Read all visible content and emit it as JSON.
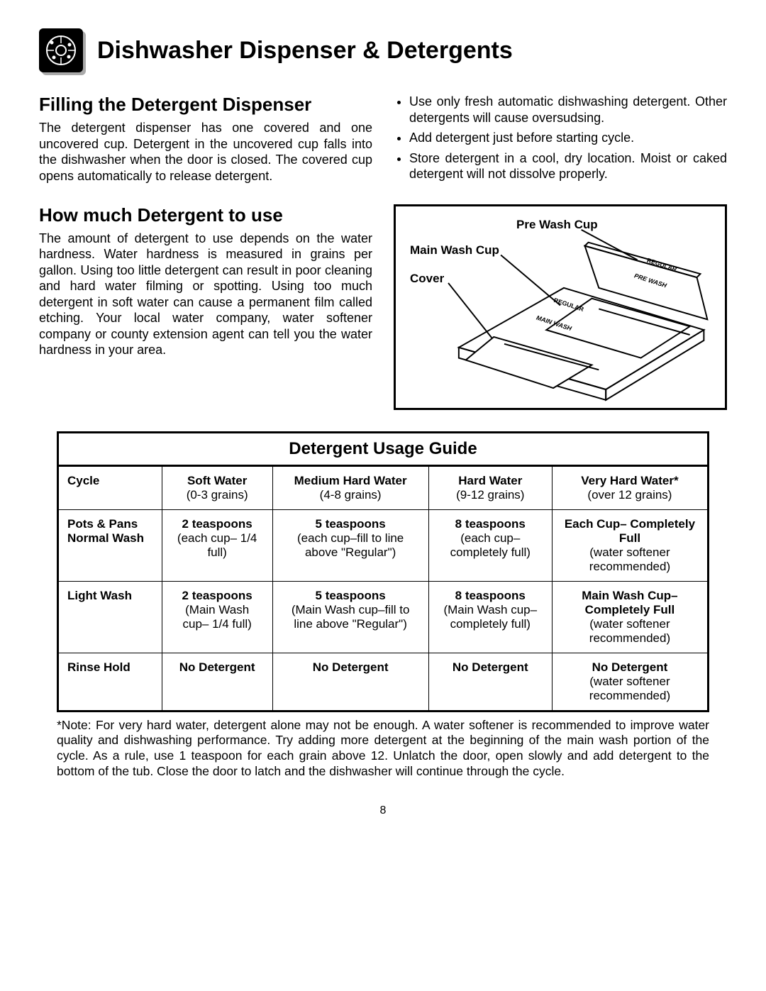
{
  "page_number": "8",
  "title": "Dishwasher Dispenser & Detergents",
  "section1": {
    "heading": "Filling the Detergent Dispenser",
    "body": "The detergent dispenser has one covered and one uncovered cup. Detergent in the uncovered cup falls into the dishwasher when the door is closed. The covered cup opens automatically to release detergent.",
    "bullets": [
      "Use only fresh automatic dishwashing detergent. Other detergents will cause oversudsing.",
      "Add detergent just before starting cycle.",
      "Store detergent in a cool, dry location. Moist or caked detergent will not dissolve properly."
    ]
  },
  "section2": {
    "heading": "How much Detergent to use",
    "body": "The amount of detergent to use depends on the water hardness. Water hardness is measured in grains per gallon. Using too little detergent can result in poor cleaning and hard water filming or spotting. Using too much detergent in soft water can cause a permanent film called etching. Your local water company, water softener company or county extension agent can tell you the water hardness in your area."
  },
  "diagram": {
    "label_prewash": "Pre Wash Cup",
    "label_mainwash": "Main Wash Cup",
    "label_cover": "Cover",
    "mark_regular1": "REGULAR",
    "mark_prewash": "PRE WASH",
    "mark_regular2": "REGULAR",
    "mark_mainwash": "MAIN WASH"
  },
  "table": {
    "title": "Detergent Usage Guide",
    "headers": {
      "cycle": "Cycle",
      "soft": "Soft Water",
      "soft_sub": "(0-3 grains)",
      "med": "Medium Hard Water",
      "med_sub": "(4-8 grains)",
      "hard": "Hard Water",
      "hard_sub": "(9-12 grains)",
      "vhard": "Very Hard Water*",
      "vhard_sub": "(over 12 grains)"
    },
    "rows": [
      {
        "cycle_b1": "Pots & Pans",
        "cycle_b2": "Normal Wash",
        "soft_b": "2 teaspoons",
        "soft_n": "(each cup– 1/4 full)",
        "med_b": "5 teaspoons",
        "med_n": "(each cup–fill to line above \"Regular\")",
        "hard_b": "8 teaspoons",
        "hard_n": "(each cup– completely full)",
        "vhard_b": "Each Cup– Completely Full",
        "vhard_n": "(water softener recommended)"
      },
      {
        "cycle_b1": "Light Wash",
        "cycle_b2": "",
        "soft_b": "2 teaspoons",
        "soft_n": "(Main Wash cup– 1/4 full)",
        "med_b": "5 teaspoons",
        "med_n": "(Main Wash cup–fill to line above \"Regular\")",
        "hard_b": "8 teaspoons",
        "hard_n": "(Main Wash cup– completely full)",
        "vhard_b": "Main Wash Cup– Completely Full",
        "vhard_n": "(water softener recommended)"
      },
      {
        "cycle_b1": "Rinse Hold",
        "cycle_b2": "",
        "soft_b": "No Detergent",
        "soft_n": "",
        "med_b": "No Detergent",
        "med_n": "",
        "hard_b": "No Detergent",
        "hard_n": "",
        "vhard_b": "No Detergent",
        "vhard_n": "(water softener recommended)"
      }
    ]
  },
  "note": "*Note:   For very hard water, detergent alone may not be enough. A water softener is recommended to improve water quality and dishwashing performance. Try adding more detergent at the beginning of the main wash portion of the cycle. As a rule, use 1 teaspoon for each grain above 12. Unlatch the door, open slowly and add detergent to the bottom of the tub. Close the door to latch and the dishwasher will continue through the cycle."
}
